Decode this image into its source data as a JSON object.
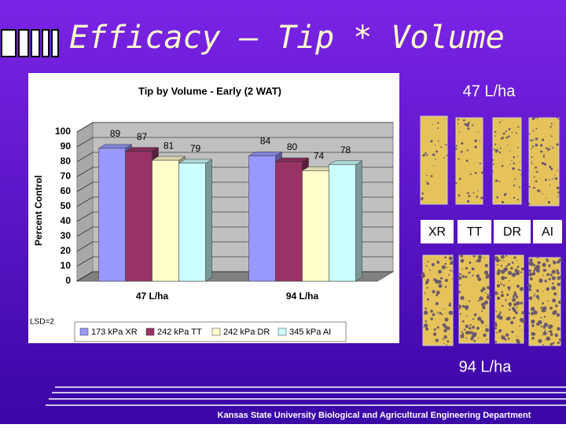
{
  "slide": {
    "title": "Efficacy – Tip * Volume",
    "label_top": "47 L/ha",
    "label_bottom": "94 L/ha",
    "card_labels": [
      "XR",
      "TT",
      "DR",
      "AI"
    ],
    "footer": "Kansas State University Biological and Agricultural Engineering Department"
  },
  "chart_data": {
    "type": "bar",
    "title": "Tip by Volume - Early (2 WAT)",
    "y_label": "Percent Control",
    "categories": [
      "47 L/ha",
      "94 L/ha"
    ],
    "series": [
      {
        "name": "173 kPa XR",
        "color": "#9999ff",
        "values": [
          89,
          84
        ]
      },
      {
        "name": "242 kPa TT",
        "color": "#993366",
        "values": [
          87,
          80
        ]
      },
      {
        "name": "242 kPa DR",
        "color": "#ffffcc",
        "values": [
          81,
          74
        ]
      },
      {
        "name": "345 kPa AI",
        "color": "#ccffff",
        "values": [
          79,
          78
        ]
      }
    ],
    "ylim": [
      0,
      100
    ],
    "yticks": [
      0,
      10,
      20,
      30,
      40,
      50,
      60,
      70,
      80,
      90,
      100
    ],
    "grid": true,
    "annotation": "LSD=2",
    "legend_position": "bottom"
  }
}
